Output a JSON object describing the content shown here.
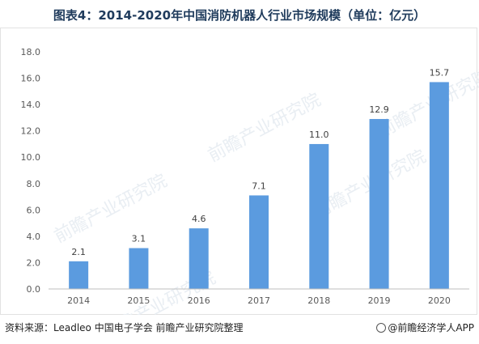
{
  "title": "图表4：2014-2020年中国消防机器人行业市场规模（单位：亿元）",
  "source": "资料来源：Leadleo 中国电子学会 前瞻产业研究院整理",
  "credit": "@前瞻经济学人APP",
  "watermark": "前瞻产业研究院",
  "colors": {
    "bar": "#5b9bdf",
    "axis": "#bfbfbf",
    "text": "#595959",
    "title": "#1f3b5c"
  },
  "chart_data": {
    "type": "bar",
    "categories": [
      "2014",
      "2015",
      "2016",
      "2017",
      "2018",
      "2019",
      "2020"
    ],
    "values": [
      2.1,
      3.1,
      4.6,
      7.1,
      11.0,
      12.9,
      15.7
    ],
    "data_labels": [
      "2.1",
      "3.1",
      "4.6",
      "7.1",
      "11.0",
      "12.9",
      "15.7"
    ],
    "yticks": [
      "0.0",
      "2.0",
      "4.0",
      "6.0",
      "8.0",
      "10.0",
      "12.0",
      "14.0",
      "16.0",
      "18.0"
    ],
    "ylim": [
      0,
      18
    ],
    "grid": false,
    "legend": "none",
    "title": "图表4：2014-2020年中国消防机器人行业市场规模（单位：亿元）",
    "xlabel": "",
    "ylabel": ""
  }
}
